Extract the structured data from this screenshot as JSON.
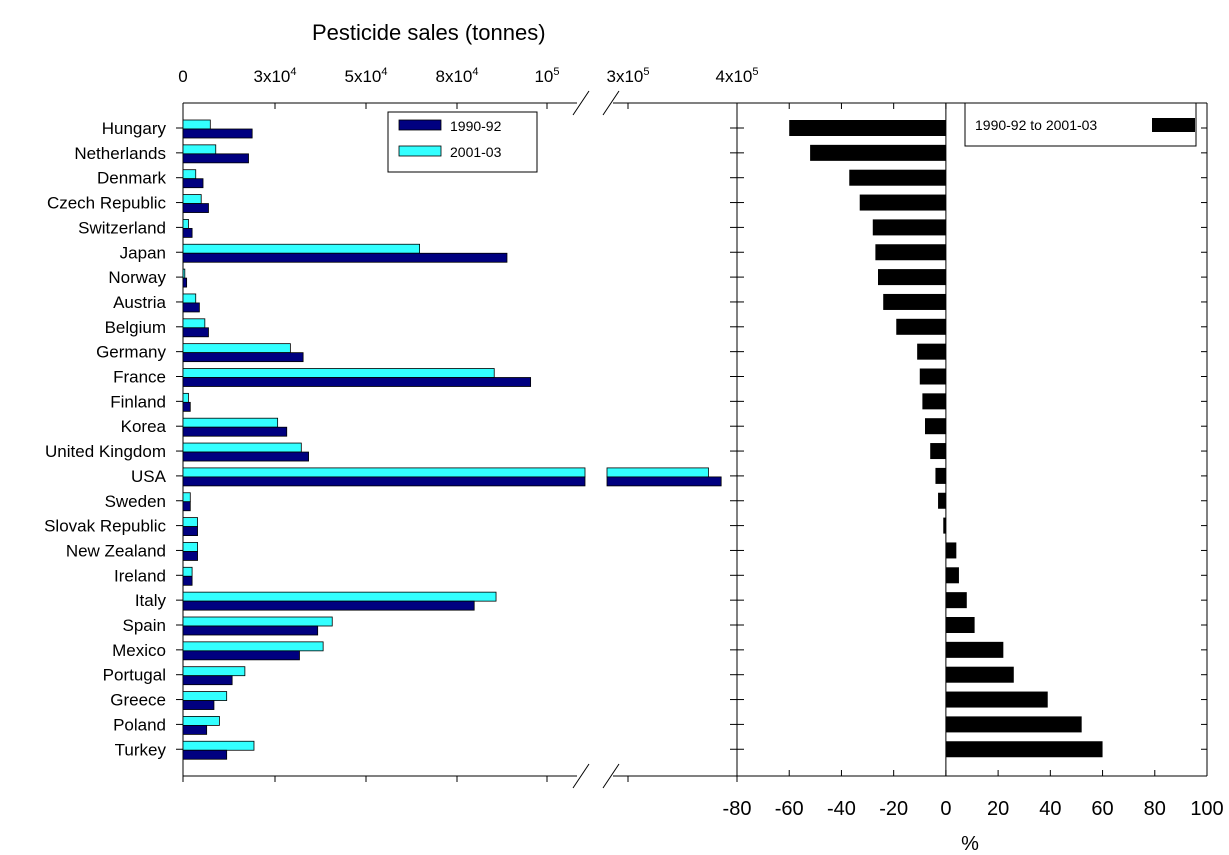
{
  "chart_data": [
    {
      "type": "bar",
      "orientation": "horizontal",
      "title": "Pesticide sales (tonnes)",
      "xlabel": "",
      "ylabel": "",
      "categories": [
        "Hungary",
        "Netherlands",
        "Denmark",
        "Czech Republic",
        "Switzerland",
        "Japan",
        "Norway",
        "Austria",
        "Belgium",
        "Germany",
        "France",
        "Finland",
        "Korea",
        "United Kingdom",
        "USA",
        "Sweden",
        "Slovak Republic",
        "New Zealand",
        "Ireland",
        "Italy",
        "Spain",
        "Mexico",
        "Portugal",
        "Greece",
        "Poland",
        "Turkey"
      ],
      "category_labels": [
        "Hungary",
        "Netherlands",
        "Denmark",
        "Czech Republic",
        "Switzerland",
        "Japan",
        "Norway",
        "Austria ",
        "Belgium",
        "Germany",
        "France",
        "Finland",
        "Korea ",
        "United Kingdom",
        "USA",
        "Sweden",
        "Slovak Republic",
        "New Zealand",
        "Ireland",
        "Italy",
        "Spain",
        "Mexico",
        "Portugal",
        "Greece",
        "Poland",
        "Turkey"
      ],
      "x_axis": {
        "scale": "broken",
        "break_between": [
          100000,
          300000
        ],
        "ticks": [
          0,
          25000,
          50000,
          75000,
          100000,
          300000,
          400000
        ],
        "tick_labels": [
          {
            "mant": "0",
            "exp": ""
          },
          {
            "mant": "3x10",
            "exp": "4"
          },
          {
            "mant": "5x10",
            "exp": "4"
          },
          {
            "mant": "8x10",
            "exp": "4"
          },
          {
            "mant": "10",
            "exp": "5"
          },
          {
            "mant": "3x10",
            "exp": "5"
          },
          {
            "mant": "4x10",
            "exp": "5"
          }
        ]
      },
      "series": [
        {
          "name": "1990-92",
          "color": "#000080",
          "values": [
            19000,
            18000,
            5500,
            7000,
            2500,
            89000,
            1000,
            4500,
            7000,
            33000,
            95500,
            2000,
            28500,
            34500,
            375000,
            2000,
            4000,
            4000,
            2500,
            80000,
            37000,
            32000,
            13500,
            8500,
            6500,
            12000
          ]
        },
        {
          "name": "2001-03",
          "color": "#33ffff",
          "values": [
            7500,
            9000,
            3500,
            5000,
            1500,
            65000,
            500,
            3500,
            6000,
            29500,
            85500,
            1500,
            26000,
            32500,
            355000,
            2000,
            4000,
            4000,
            2500,
            86000,
            41000,
            38500,
            17000,
            12000,
            10000,
            19500
          ]
        }
      ]
    },
    {
      "type": "bar",
      "orientation": "horizontal",
      "title": "",
      "xlabel": "%",
      "ylabel": "",
      "xlim": [
        -80,
        100
      ],
      "xticks": [
        -80,
        -60,
        -40,
        -20,
        0,
        20,
        40,
        60,
        80,
        100
      ],
      "xtick_labels": [
        "-80",
        "-60",
        "-40",
        "-20",
        "0",
        "20",
        "40",
        "60",
        "80",
        "100"
      ],
      "categories": [
        "Hungary",
        "Netherlands",
        "Denmark",
        "Czech Republic",
        "Switzerland",
        "Japan",
        "Norway",
        "Austria",
        "Belgium",
        "Germany",
        "France",
        "Finland",
        "Korea",
        "United Kingdom",
        "USA",
        "Sweden",
        "Slovak Republic",
        "New Zealand",
        "Ireland",
        "Italy",
        "Spain",
        "Mexico",
        "Portugal",
        "Greece",
        "Poland",
        "Turkey"
      ],
      "series": [
        {
          "name": "1990-92 to 2001-03",
          "color": "#000000",
          "values": [
            -60,
            -52,
            -37,
            -33,
            -28,
            -27,
            -26,
            -24,
            -19,
            -11,
            -10,
            -9,
            -8,
            -6,
            -4,
            -3,
            -1,
            4,
            5,
            8,
            11,
            22,
            26,
            39,
            52,
            60
          ]
        }
      ]
    }
  ]
}
